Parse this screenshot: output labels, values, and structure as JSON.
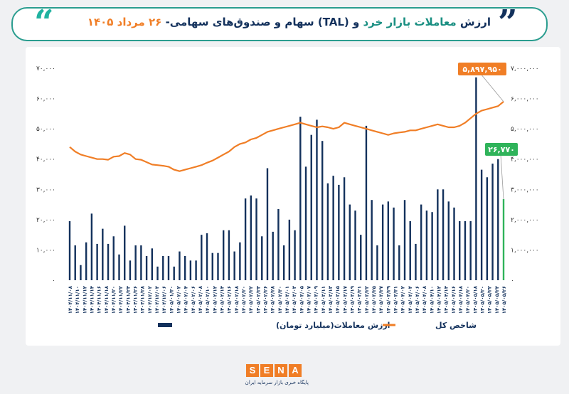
{
  "header": {
    "title_part1": "ارزش ",
    "title_part2": "معاملات بازار خرد ",
    "title_part3": "و (TAL) سهام و صندوق‌های سهامی- ",
    "title_part4": "۲۶ مرداد ۱۴۰۵",
    "quote_left": "“",
    "quote_right": "”"
  },
  "footer": {
    "logo_letters": [
      "S",
      "E",
      "N",
      "A"
    ],
    "tagline": "پایگاه خبری بازار سرمایه ایران"
  },
  "colors": {
    "bar": "#13315c",
    "line": "#f07e26",
    "highlight_bar": "#2fb35a",
    "callout_index": "#f07e26",
    "callout_value": "#2fb35a"
  },
  "chart_data": {
    "type": "bar+line",
    "grid": false,
    "legend_position": "bottom",
    "x_tick_labels": [
      "۱۴۰۴/۱۱/۰۸",
      "۱۴۰۴/۱۱/۱۰",
      "۱۴۰۴/۱۱/۱۲",
      "۱۴۰۴/۱۱/۱۴",
      "۱۴۰۴/۱۱/۱۶",
      "۱۴۰۴/۱۱/۱۸",
      "۱۴۰۴/۱۱/۲۰",
      "۱۴۰۴/۱۱/۲۲",
      "۱۴۰۴/۱۱/۲۴",
      "۱۴۰۴/۱۱/۲۶",
      "۱۴۰۴/۱۱/۲۸",
      "۱۴۰۴/۱۲/۰۲",
      "۱۴۰۴/۱۲/۰۴",
      "۱۴۰۴/۱۲/۰۶",
      "۱۴۰۵/۰۱/۳۰",
      "۱۴۰۵/۰۲/۰۲",
      "۱۴۰۵/۰۲/۰۴",
      "۱۴۰۵/۰۲/۰۶",
      "۱۴۰۵/۰۲/۰۸",
      "۱۴۰۵/۰۲/۱۰",
      "۱۴۰۵/۰۲/۱۲",
      "۱۴۰۵/۰۲/۱۴",
      "۱۴۰۵/۰۲/۱۶",
      "۱۴۰۵/۰۲/۱۸",
      "۱۴۰۵/۰۲/۲۰",
      "۱۴۰۵/۰۲/۲۲",
      "۱۴۰۵/۰۲/۲۴",
      "۱۴۰۵/۰۲/۲۶",
      "۱۴۰۵/۰۲/۲۸",
      "۱۴۰۵/۰۲/۳۰",
      "۱۴۰۵/۰۳/۰۱",
      "۱۴۰۵/۰۳/۰۳",
      "۱۴۰۵/۰۳/۰۵",
      "۱۴۰۵/۰۳/۰۷",
      "۱۴۰۵/۰۳/۰۹",
      "۱۴۰۵/۰۳/۱۱",
      "۱۴۰۵/۰۳/۱۳",
      "۱۴۰۵/۰۳/۱۵",
      "۱۴۰۵/۰۳/۱۷",
      "۱۴۰۵/۰۳/۱۹",
      "۱۴۰۵/۰۳/۲۱",
      "۱۴۰۵/۰۳/۲۳",
      "۱۴۰۵/۰۳/۲۵",
      "۱۴۰۵/۰۳/۲۷",
      "۱۴۰۵/۰۳/۲۹",
      "۱۴۰۵/۰۳/۳۱",
      "۱۴۰۵/۰۴/۰۲",
      "۱۴۰۵/۰۴/۰۴",
      "۱۴۰۵/۰۴/۰۶",
      "۱۴۰۵/۰۴/۰۸",
      "۱۴۰۵/۰۴/۱۰",
      "۱۴۰۵/۰۴/۱۲",
      "۱۴۰۵/۰۴/۱۴",
      "۱۴۰۵/۰۴/۱۶",
      "۱۴۰۵/۰۴/۱۸",
      "۱۴۰۵/۰۴/۲۰",
      "۱۴۰۵/۰۵/۱۸",
      "۱۴۰۵/۰۵/۲۰",
      "۱۴۰۵/۰۵/۲۲",
      "۱۴۰۵/۰۵/۲۴",
      "۱۴۰۵/۰۵/۲۶"
    ],
    "y_left_ticks": [
      "۰",
      "۱۰,۰۰۰",
      "۲۰,۰۰۰",
      "۳۰,۰۰۰",
      "۴۰,۰۰۰",
      "۵۰,۰۰۰",
      "۶۰,۰۰۰",
      "۷۰,۰۰۰"
    ],
    "y_right_ticks": [
      "۰",
      "۱,۰۰۰,۰۰۰",
      "۲,۰۰۰,۰۰۰",
      "۳,۰۰۰,۰۰۰",
      "۴,۰۰۰,۰۰۰",
      "۵,۰۰۰,۰۰۰",
      "۶,۰۰۰,۰۰۰",
      "۷,۰۰۰,۰۰۰"
    ],
    "ylim_left": [
      0,
      70000
    ],
    "ylim_right": [
      0,
      7000000
    ],
    "series": [
      {
        "name": "ارزش معاملات(میلیارد تومان)",
        "type": "bar",
        "axis": "left",
        "values": [
          19500,
          11500,
          5000,
          12500,
          22000,
          12000,
          17000,
          12000,
          14500,
          8500,
          18000,
          6500,
          11500,
          11500,
          8000,
          10500,
          4500,
          8000,
          8000,
          4500,
          9500,
          8000,
          6500,
          6500,
          15000,
          15500,
          9000,
          9000,
          16500,
          16500,
          9500,
          12500,
          27000,
          28000,
          27000,
          14500,
          37000,
          16000,
          23500,
          11500,
          20000,
          16500,
          54000,
          37500,
          48000,
          53000,
          46000,
          32000,
          34500,
          31500,
          34000,
          25000,
          23000,
          15000,
          51000,
          26500,
          11500,
          25000,
          26000,
          24000,
          11500,
          26500,
          19500,
          12000,
          25000,
          23000,
          22500,
          30000,
          30000,
          26000,
          24000,
          19500,
          19500,
          19500,
          67000,
          36500,
          34000,
          38500,
          40000,
          26770
        ],
        "last_label": "۲۶,۷۷۰"
      },
      {
        "name": "شاخص کل",
        "type": "line",
        "axis": "right",
        "values": [
          4400000,
          4250000,
          4150000,
          4100000,
          4050000,
          4000000,
          4000000,
          3980000,
          4080000,
          4100000,
          4200000,
          4150000,
          4000000,
          3980000,
          3900000,
          3820000,
          3800000,
          3780000,
          3750000,
          3650000,
          3600000,
          3650000,
          3700000,
          3750000,
          3800000,
          3880000,
          3950000,
          4050000,
          4150000,
          4250000,
          4400000,
          4500000,
          4550000,
          4650000,
          4700000,
          4800000,
          4900000,
          4950000,
          5000000,
          5050000,
          5100000,
          5150000,
          5200000,
          5150000,
          5100000,
          5050000,
          5080000,
          5050000,
          5000000,
          5050000,
          5200000,
          5150000,
          5100000,
          5050000,
          5000000,
          4950000,
          4900000,
          4850000,
          4800000,
          4850000,
          4880000,
          4900000,
          4950000,
          4950000,
          5000000,
          5050000,
          5100000,
          5150000,
          5100000,
          5050000,
          5050000,
          5100000,
          5200000,
          5350000,
          5500000,
          5600000,
          5650000,
          5700000,
          5750000,
          5897950
        ],
        "last_label": "۵,۸۹۷,۹۵۰"
      }
    ]
  }
}
